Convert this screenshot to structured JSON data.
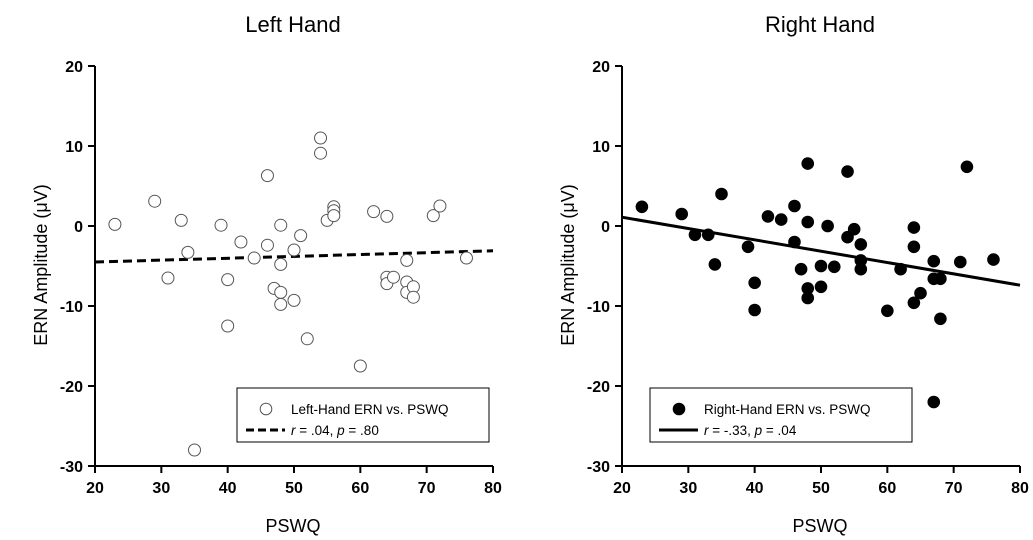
{
  "figure": {
    "charts": [
      {
        "title": "Left Hand",
        "xlabel": "PSWQ",
        "ylabel": "ERN Amplitude (μV)"
      },
      {
        "title": "Right Hand",
        "xlabel": "PSWQ",
        "ylabel": "ERN Amplitude (μV)"
      }
    ]
  },
  "chart_data": [
    {
      "type": "scatter",
      "title": "Left Hand",
      "xlabel": "PSWQ",
      "ylabel": "ERN Amplitude (μV)",
      "xlim": [
        20,
        80
      ],
      "ylim": [
        -30,
        20
      ],
      "xticks": [
        20,
        30,
        40,
        50,
        60,
        70,
        80
      ],
      "yticks": [
        20,
        10,
        0,
        -10,
        -20,
        -30
      ],
      "legend": "bottom-right",
      "marker_style": "open",
      "fit_style": "dashed",
      "series": [
        {
          "name": "Left-Hand ERN vs. PSWQ",
          "points": [
            [
              23,
              0.2
            ],
            [
              29,
              3.1
            ],
            [
              31,
              -6.5
            ],
            [
              33,
              0.7
            ],
            [
              34,
              -3.3
            ],
            [
              35,
              -28
            ],
            [
              39,
              0.1
            ],
            [
              40,
              -6.7
            ],
            [
              40,
              -12.5
            ],
            [
              42,
              -2.0
            ],
            [
              44,
              -4.0
            ],
            [
              46,
              6.3
            ],
            [
              46,
              -2.4
            ],
            [
              47,
              -7.8
            ],
            [
              48,
              0.1
            ],
            [
              48,
              -4.8
            ],
            [
              48,
              -8.3
            ],
            [
              48,
              -9.8
            ],
            [
              50,
              -3.0
            ],
            [
              50,
              -9.3
            ],
            [
              51,
              -1.2
            ],
            [
              52,
              -14.1
            ],
            [
              54,
              11.0
            ],
            [
              54,
              9.1
            ],
            [
              55,
              0.7
            ],
            [
              56,
              2.4
            ],
            [
              56,
              1.9
            ],
            [
              56,
              1.3
            ],
            [
              60,
              -17.5
            ],
            [
              62,
              1.8
            ],
            [
              64,
              1.2
            ],
            [
              64,
              -6.4
            ],
            [
              64,
              -7.2
            ],
            [
              65,
              -6.4
            ],
            [
              67,
              -4.3
            ],
            [
              67,
              -7.0
            ],
            [
              67,
              -8.3
            ],
            [
              68,
              -7.6
            ],
            [
              68,
              -8.9
            ],
            [
              71,
              1.3
            ],
            [
              72,
              2.5
            ],
            [
              76,
              -4.0
            ]
          ]
        },
        {
          "name": "r = .04, p = .80",
          "line": [
            [
              20,
              -4.5
            ],
            [
              80,
              -3.1
            ]
          ]
        }
      ],
      "legend_entries": [
        {
          "text": "Left-Hand ERN vs. PSWQ"
        },
        {
          "r_label": "r",
          "r_value": " = .04, ",
          "p_label": "p",
          "p_value": " = .80"
        }
      ]
    },
    {
      "type": "scatter",
      "title": "Right Hand",
      "xlabel": "PSWQ",
      "ylabel": "ERN Amplitude (μV)",
      "xlim": [
        20,
        80
      ],
      "ylim": [
        -30,
        20
      ],
      "xticks": [
        20,
        30,
        40,
        50,
        60,
        70,
        80
      ],
      "yticks": [
        20,
        10,
        0,
        -10,
        -20,
        -30
      ],
      "legend": "bottom-right",
      "marker_style": "filled",
      "fit_style": "solid",
      "series": [
        {
          "name": "Right-Hand ERN vs. PSWQ",
          "points": [
            [
              23,
              2.4
            ],
            [
              29,
              1.5
            ],
            [
              31,
              -1.1
            ],
            [
              33,
              -1.1
            ],
            [
              34,
              -4.8
            ],
            [
              35,
              4.0
            ],
            [
              39,
              -2.6
            ],
            [
              40,
              -7.1
            ],
            [
              40,
              -10.5
            ],
            [
              42,
              1.2
            ],
            [
              44,
              0.8
            ],
            [
              46,
              2.5
            ],
            [
              46,
              -2.0
            ],
            [
              47,
              -5.4
            ],
            [
              48,
              7.8
            ],
            [
              48,
              0.5
            ],
            [
              48,
              -7.8
            ],
            [
              48,
              -9.0
            ],
            [
              50,
              -5.0
            ],
            [
              50,
              -7.6
            ],
            [
              51,
              0.0
            ],
            [
              52,
              -5.1
            ],
            [
              54,
              6.8
            ],
            [
              54,
              -1.4
            ],
            [
              55,
              -0.4
            ],
            [
              56,
              -2.3
            ],
            [
              56,
              -4.3
            ],
            [
              56,
              -5.4
            ],
            [
              60,
              -10.6
            ],
            [
              62,
              -5.4
            ],
            [
              64,
              -0.2
            ],
            [
              64,
              -2.6
            ],
            [
              64,
              -9.6
            ],
            [
              65,
              -8.4
            ],
            [
              67,
              -4.4
            ],
            [
              67,
              -6.6
            ],
            [
              67,
              -22.0
            ],
            [
              68,
              -6.6
            ],
            [
              68,
              -11.6
            ],
            [
              71,
              -4.5
            ],
            [
              72,
              7.4
            ],
            [
              76,
              -4.2
            ]
          ]
        },
        {
          "name": "r = -.33, p = .04",
          "line": [
            [
              20,
              1.1
            ],
            [
              80,
              -7.4
            ]
          ]
        }
      ],
      "legend_entries": [
        {
          "text": "Right-Hand ERN vs. PSWQ"
        },
        {
          "r_label": "r",
          "r_value": " = -.33, ",
          "p_label": "p",
          "p_value": " = .04"
        }
      ]
    }
  ]
}
